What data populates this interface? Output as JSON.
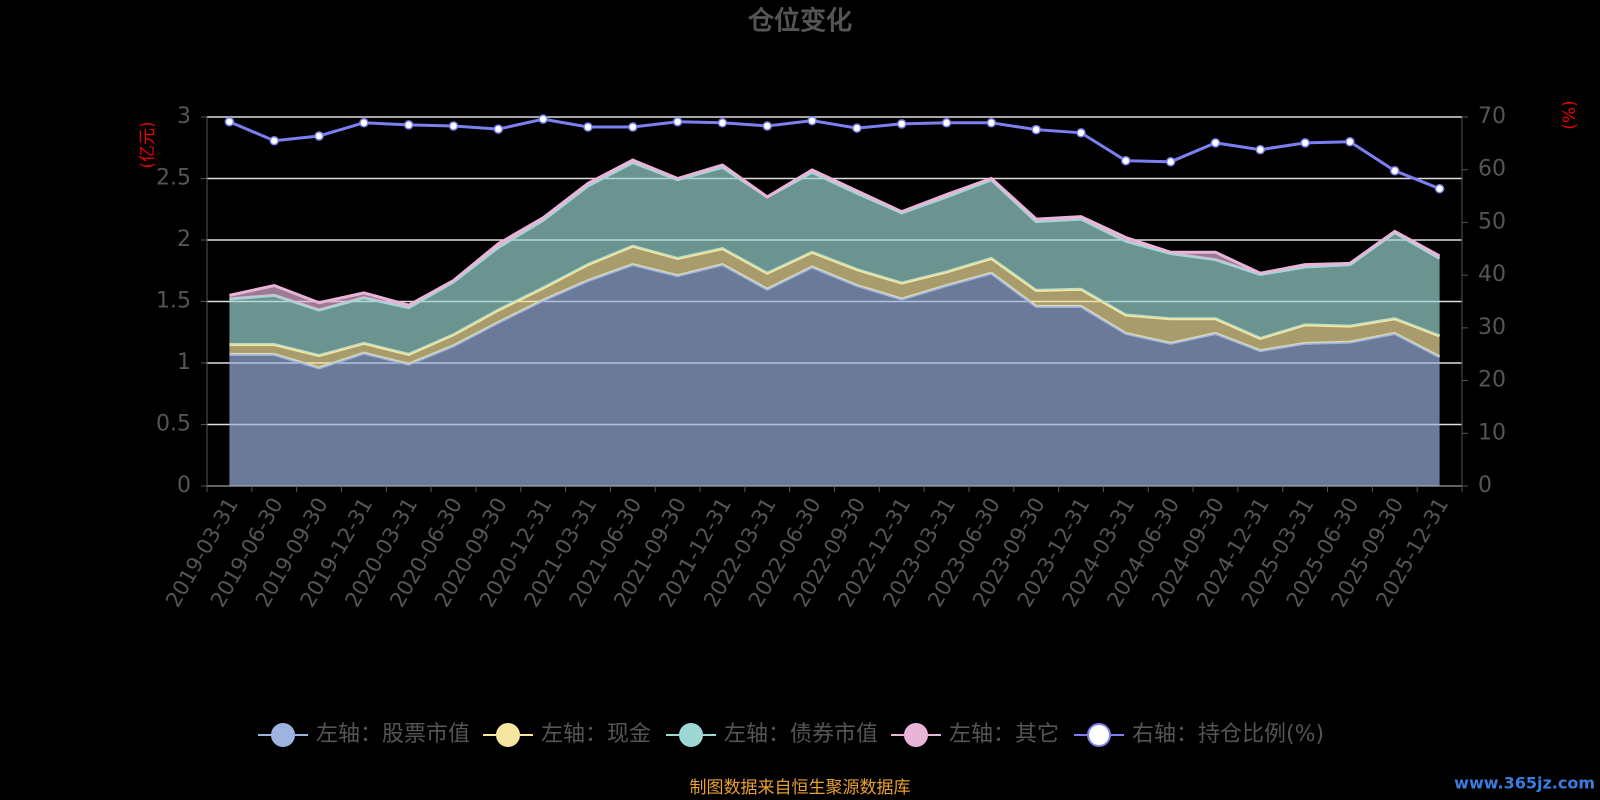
{
  "chart_data": {
    "type": "stacked-area-line",
    "title": "仓位变化",
    "ylabel": "(亿元)",
    "y2label": "(%)",
    "source": "制图数据来自恒生聚源数据库",
    "watermark": "www.365jz.com",
    "categories": [
      "2019-03-31",
      "2019-06-30",
      "2019-09-30",
      "2019-12-31",
      "2020-03-31",
      "2020-06-30",
      "2020-09-30",
      "2020-12-31",
      "2021-03-31",
      "2021-06-30",
      "2021-09-30",
      "2021-12-31",
      "2022-03-31",
      "2022-06-30",
      "2022-09-30",
      "2022-12-31",
      "2023-03-31",
      "2023-06-30",
      "2023-09-30",
      "2023-12-31",
      "2024-03-31",
      "2024-06-30",
      "2024-09-30",
      "2024-12-31",
      "2025-03-31",
      "2025-06-30",
      "2025-09-30",
      "2025-12-31"
    ],
    "series": [
      {
        "name": "左轴：股票市值",
        "color": "#9db4e0",
        "stack": true,
        "values": [
          1.07,
          1.07,
          0.96,
          1.08,
          0.99,
          1.14,
          1.33,
          1.51,
          1.67,
          1.8,
          1.71,
          1.8,
          1.6,
          1.78,
          1.63,
          1.52,
          1.63,
          1.73,
          1.46,
          1.46,
          1.24,
          1.16,
          1.24,
          1.1,
          1.16,
          1.17,
          1.24,
          1.05
        ]
      },
      {
        "name": "左轴：现金",
        "color": "#f7e6a0",
        "stack": true,
        "values": [
          0.08,
          0.08,
          0.1,
          0.08,
          0.08,
          0.09,
          0.1,
          0.1,
          0.13,
          0.15,
          0.14,
          0.13,
          0.13,
          0.12,
          0.13,
          0.13,
          0.11,
          0.12,
          0.13,
          0.14,
          0.15,
          0.2,
          0.12,
          0.1,
          0.15,
          0.13,
          0.12,
          0.17
        ]
      },
      {
        "name": "左轴：债券市值",
        "color": "#9dd8d4",
        "stack": true,
        "values": [
          0.37,
          0.4,
          0.37,
          0.37,
          0.38,
          0.43,
          0.51,
          0.55,
          0.64,
          0.68,
          0.64,
          0.66,
          0.62,
          0.65,
          0.62,
          0.57,
          0.61,
          0.64,
          0.56,
          0.57,
          0.6,
          0.53,
          0.48,
          0.52,
          0.47,
          0.5,
          0.7,
          0.63
        ]
      },
      {
        "name": "左轴：其它",
        "color": "#e8b4d8",
        "stack": true,
        "values": [
          0.03,
          0.08,
          0.06,
          0.04,
          0.02,
          0.01,
          0.03,
          0.02,
          0.02,
          0.02,
          0.01,
          0.02,
          0,
          0.02,
          0.02,
          0.01,
          0.02,
          0.01,
          0.02,
          0.02,
          0.03,
          0.01,
          0.06,
          0.01,
          0.02,
          0.01,
          0.01,
          0.02
        ]
      },
      {
        "name": "右轴：持仓比例(%)",
        "color": "#7b7ff0",
        "axis": "y2",
        "values": [
          69.1,
          65.5,
          66.4,
          68.9,
          68.5,
          68.3,
          67.7,
          69.6,
          68.1,
          68.1,
          69.1,
          68.9,
          68.3,
          69.3,
          67.9,
          68.7,
          68.9,
          68.9,
          67.6,
          67.0,
          61.7,
          61.5,
          65.1,
          63.8,
          65.1,
          65.3,
          59.8,
          56.4
        ]
      }
    ],
    "ylim": [
      0,
      3
    ],
    "yticks": [
      0,
      0.5,
      1,
      1.5,
      2,
      2.5,
      3
    ],
    "y2lim": [
      0,
      70
    ],
    "y2ticks": [
      0,
      10,
      20,
      30,
      40,
      50,
      60,
      70
    ],
    "grid": true
  }
}
